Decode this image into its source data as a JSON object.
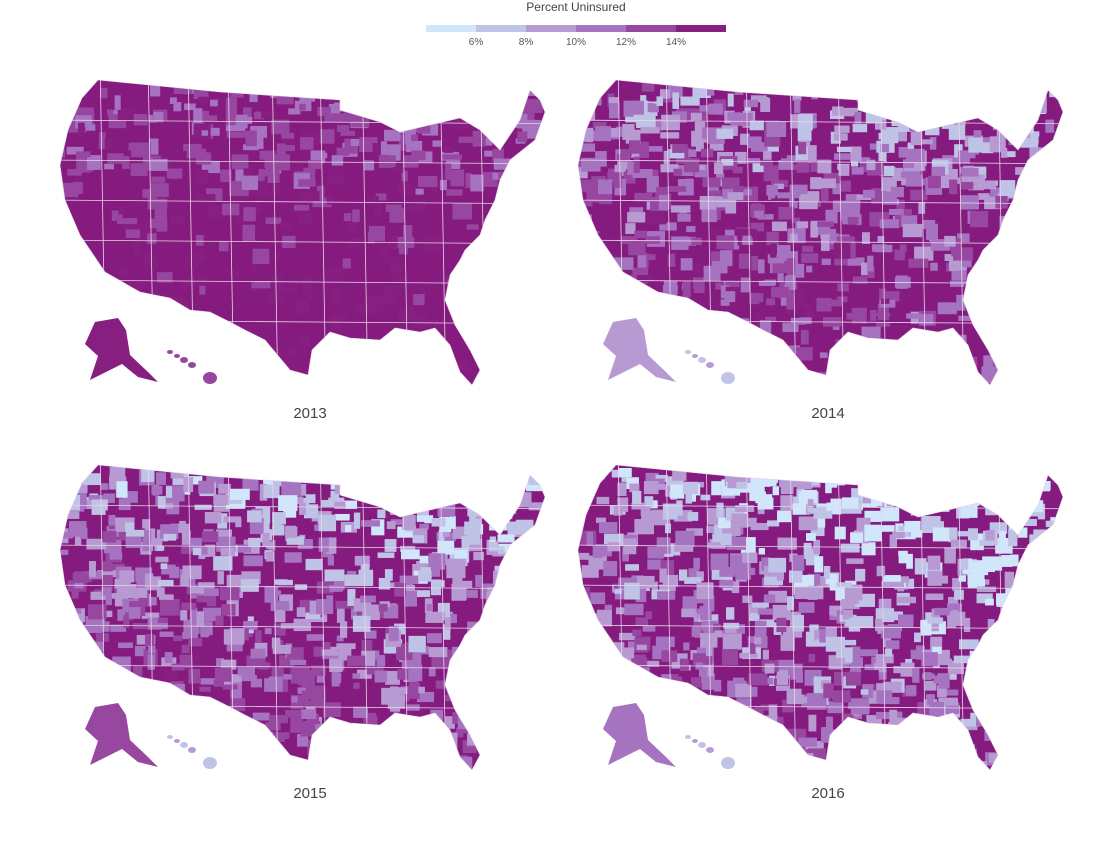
{
  "legend": {
    "title": "Percent Uninsured",
    "colors": [
      "#cfe6fb",
      "#bfc3e6",
      "#b89ad3",
      "#a673c0",
      "#97479f",
      "#861f80"
    ],
    "ticks": [
      "6%",
      "8%",
      "10%",
      "12%",
      "14%"
    ]
  },
  "colors": {
    "state_border": "#e8d6ea",
    "darkest": "#851a7f"
  },
  "maps": [
    {
      "year": "2013",
      "level": 0.95
    },
    {
      "year": "2014",
      "level": 0.62
    },
    {
      "year": "2015",
      "level": 0.52
    },
    {
      "year": "2016",
      "level": 0.4
    }
  ]
}
